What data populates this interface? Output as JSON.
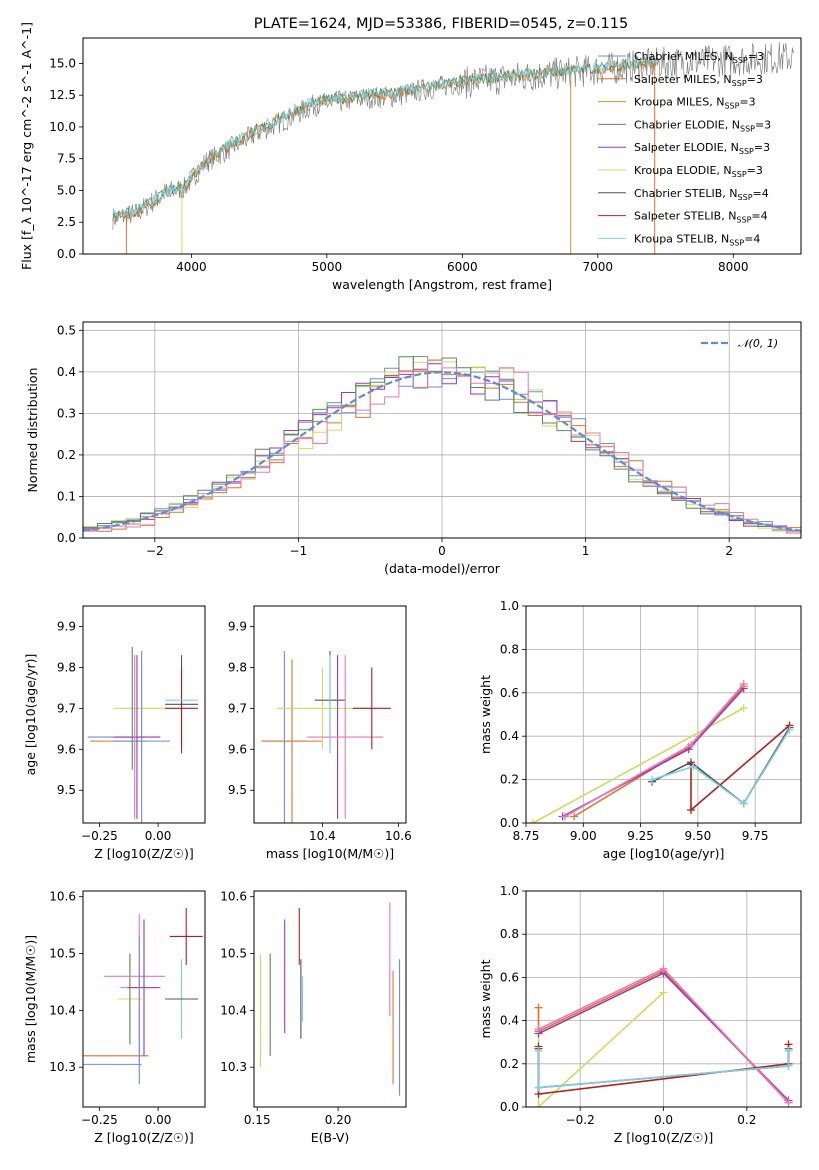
{
  "figure_title": "PLATE=1624, MJD=53386, FIBERID=0545, z=0.115",
  "colors": {
    "chabrier_miles": "#6d8fd8",
    "salpeter_miles": "#e0742a",
    "kroupa_miles": "#c49a2c",
    "chabrier_elodie": "#5a8a5a",
    "salpeter_elodie": "#9a3ab4",
    "kroupa_elodie": "#c8e060",
    "chabrier_stelib": "#555555",
    "salpeter_stelib": "#b02020",
    "kroupa_stelib": "#7ecfe0",
    "pink": "#e878b8",
    "normal_curve": "#5a8fd0"
  },
  "chart_data": [
    {
      "id": "spectrum",
      "type": "line",
      "title": "PLATE=1624, MJD=53386, FIBERID=0545, z=0.115",
      "xlabel": "wavelength [Angstrom, rest frame]",
      "ylabel": "Flux [f_λ 10^-17 erg cm^-2 s^-1 A^-1]",
      "xlim": [
        3200,
        8500
      ],
      "ylim": [
        0,
        17
      ],
      "xticks": [
        4000,
        5000,
        6000,
        7000,
        8000
      ],
      "yticks": [
        0.0,
        2.5,
        5.0,
        7.5,
        10.0,
        12.5,
        15.0
      ],
      "ytick_labels": [
        "0.0",
        "2.5",
        "5.0",
        "7.5",
        "10.0",
        "12.5",
        "15.0"
      ],
      "legend_position": "top-right",
      "legend": [
        "Chabrier MILES, N_SSP=3",
        "Salpeter MILES, N_SSP=3",
        "Kroupa MILES, N_SSP=3",
        "Chabrier ELODIE, N_SSP=3",
        "Salpeter ELODIE, N_SSP=3",
        "Kroupa ELODIE, N_SSP=3",
        "Chabrier STELIB, N_SSP=4",
        "Salpeter STELIB, N_SSP=4",
        "Kroupa STELIB, N_SSP=4"
      ],
      "data_trend": {
        "x": [
          3420,
          3600,
          3800,
          3950,
          4100,
          4300,
          4500,
          4700,
          4900,
          5100,
          5300,
          5500,
          5700,
          5900,
          6100,
          6300,
          6500,
          6700,
          6900,
          7100,
          7300,
          7450
        ],
        "y": [
          2.8,
          3.2,
          4.8,
          5.2,
          7.2,
          8.4,
          9.6,
          10.6,
          11.7,
          12.0,
          12.3,
          12.4,
          12.9,
          13.3,
          13.6,
          13.8,
          14.0,
          14.2,
          14.4,
          14.6,
          14.8,
          15.0
        ]
      },
      "model_trend": {
        "x": [
          3420,
          3600,
          3800,
          3950,
          4100,
          4300,
          4500,
          4700,
          4900,
          5100,
          5300,
          5500,
          5700,
          5900,
          6100,
          6300,
          6500,
          6700,
          6900,
          7100,
          7300,
          7450
        ],
        "y": [
          2.9,
          3.3,
          4.7,
          5.3,
          7.3,
          8.6,
          9.8,
          10.8,
          11.9,
          12.2,
          12.5,
          12.6,
          13.0,
          13.4,
          13.7,
          13.9,
          14.1,
          14.3,
          14.5,
          14.7,
          14.9,
          15.1
        ]
      }
    },
    {
      "id": "residuals",
      "type": "histogram",
      "xlabel": "(data-model)/error",
      "ylabel": "Normed distribution",
      "xlim": [
        -2.5,
        2.5
      ],
      "ylim": [
        0,
        0.52
      ],
      "xticks": [
        -2,
        -1,
        0,
        1,
        2
      ],
      "xtick_labels": [
        "−2",
        "−1",
        "0",
        "1",
        "2"
      ],
      "yticks": [
        0.0,
        0.1,
        0.2,
        0.3,
        0.4,
        0.5
      ],
      "ytick_labels": [
        "0.0",
        "0.1",
        "0.2",
        "0.3",
        "0.4",
        "0.5"
      ],
      "grid": true,
      "legend_position": "top-right",
      "legend": [
        "𝒩(0, 1)"
      ],
      "bins": {
        "start": -2.5,
        "width": 0.1,
        "count": 50
      },
      "series": [
        {
          "color_key": "chabrier_miles",
          "shift": 0.0
        },
        {
          "color_key": "salpeter_miles",
          "shift": 0.04
        },
        {
          "color_key": "salpeter_elodie",
          "shift": -0.03
        },
        {
          "color_key": "kroupa_elodie",
          "shift": 0.02
        },
        {
          "color_key": "chabrier_elodie",
          "shift": -0.05
        },
        {
          "color_key": "pink",
          "shift": 0.06
        }
      ]
    },
    {
      "id": "age-vs-Z",
      "type": "errorbar",
      "xlabel": "Z [log10(Z/Z☉)]",
      "ylabel": "age [log10(age/yr)]",
      "xlim": [
        -0.32,
        0.2
      ],
      "ylim": [
        9.42,
        9.95
      ],
      "xticks": [
        -0.25,
        0.0
      ],
      "xtick_labels": [
        "−0.25",
        "0.00"
      ],
      "yticks": [
        9.5,
        9.6,
        9.7,
        9.8,
        9.9
      ],
      "points": [
        {
          "x": -0.18,
          "y": 9.63,
          "xerr": 0.12,
          "yerr": 0.0,
          "color_key": "chabrier_miles"
        },
        {
          "x": -0.17,
          "y": 9.62,
          "xerr": 0.12,
          "yerr": 0.0,
          "color_key": "salpeter_miles"
        },
        {
          "x": -0.07,
          "y": 9.7,
          "xerr": 0.12,
          "yerr": 0.1,
          "color_key": "kroupa_elodie"
        },
        {
          "x": -0.07,
          "y": 9.62,
          "xerr": 0.12,
          "yerr": 0.22,
          "color_key": "chabrier_miles"
        },
        {
          "x": -0.09,
          "y": 9.63,
          "xerr": 0.1,
          "yerr": 0.2,
          "color_key": "salpeter_elodie"
        },
        {
          "x": -0.11,
          "y": 9.7,
          "xerr": 0.0,
          "yerr": 0.15,
          "color_key": "chabrier_elodie"
        },
        {
          "x": -0.1,
          "y": 9.63,
          "xerr": 0.0,
          "yerr": 0.2,
          "color_key": "pink"
        },
        {
          "x": 0.1,
          "y": 9.71,
          "xerr": 0.07,
          "yerr": 0.12,
          "color_key": "chabrier_stelib"
        },
        {
          "x": 0.1,
          "y": 9.7,
          "xerr": 0.07,
          "yerr": 0.1,
          "color_key": "salpeter_stelib"
        },
        {
          "x": 0.1,
          "y": 9.72,
          "xerr": 0.07,
          "yerr": 0.0,
          "color_key": "kroupa_stelib"
        }
      ]
    },
    {
      "id": "age-vs-mass",
      "type": "errorbar",
      "xlabel": "mass [log10(M/M☉)]",
      "ylabel": "",
      "xlim": [
        10.22,
        10.62
      ],
      "ylim": [
        9.42,
        9.95
      ],
      "xticks": [
        10.4,
        10.6
      ],
      "xtick_labels": [
        "10.4",
        "10.6"
      ],
      "yticks": [
        9.5,
        9.6,
        9.7,
        9.8,
        9.9
      ],
      "points": [
        {
          "x": 10.3,
          "y": 9.62,
          "xerr": 0.06,
          "yerr": 0.22,
          "color_key": "chabrier_miles"
        },
        {
          "x": 10.32,
          "y": 9.62,
          "xerr": 0.08,
          "yerr": 0.2,
          "color_key": "salpeter_miles"
        },
        {
          "x": 10.4,
          "y": 9.7,
          "xerr": 0.12,
          "yerr": 0.1,
          "color_key": "kroupa_elodie"
        },
        {
          "x": 10.42,
          "y": 9.72,
          "xerr": 0.04,
          "yerr": 0.12,
          "color_key": "chabrier_stelib"
        },
        {
          "x": 10.44,
          "y": 9.63,
          "xerr": 0.0,
          "yerr": 0.2,
          "color_key": "salpeter_elodie"
        },
        {
          "x": 10.46,
          "y": 9.63,
          "xerr": 0.1,
          "yerr": 0.2,
          "color_key": "pink"
        },
        {
          "x": 10.42,
          "y": 9.71,
          "xerr": 0.0,
          "yerr": 0.12,
          "color_key": "kroupa_stelib"
        },
        {
          "x": 10.53,
          "y": 9.7,
          "xerr": 0.05,
          "yerr": 0.1,
          "color_key": "salpeter_stelib"
        }
      ]
    },
    {
      "id": "weight-vs-age",
      "type": "line",
      "xlabel": "age [log10(age/yr)]",
      "ylabel": "mass weight",
      "xlim": [
        8.75,
        9.95
      ],
      "ylim": [
        0,
        1.0
      ],
      "xticks": [
        8.75,
        9.0,
        9.25,
        9.5,
        9.75
      ],
      "xtick_labels": [
        "8.75",
        "9.00",
        "9.25",
        "9.50",
        "9.75"
      ],
      "yticks": [
        0.0,
        0.2,
        0.4,
        0.6,
        0.8,
        1.0
      ],
      "grid": true,
      "series": [
        {
          "color_key": "kroupa_elodie",
          "x": [
            8.78,
            9.7
          ],
          "y": [
            0.0,
            0.53
          ]
        },
        {
          "color_key": "salpeter_miles",
          "x": [
            8.96,
            9.46,
            9.7
          ],
          "y": [
            0.03,
            0.35,
            0.63
          ]
        },
        {
          "color_key": "salpeter_elodie",
          "x": [
            8.91,
            9.46,
            9.7
          ],
          "y": [
            0.03,
            0.34,
            0.62
          ]
        },
        {
          "color_key": "pink",
          "x": [
            8.92,
            9.47,
            9.7
          ],
          "y": [
            0.03,
            0.36,
            0.64
          ]
        },
        {
          "color_key": "chabrier_stelib",
          "x": [
            9.3,
            9.47,
            9.7,
            9.9
          ],
          "y": [
            0.19,
            0.28,
            0.09,
            0.44
          ]
        },
        {
          "color_key": "salpeter_stelib",
          "x": [
            9.47,
            9.47,
            9.9
          ],
          "y": [
            0.27,
            0.06,
            0.45
          ]
        },
        {
          "color_key": "kroupa_stelib",
          "x": [
            9.3,
            9.48,
            9.7,
            9.9
          ],
          "y": [
            0.2,
            0.26,
            0.09,
            0.43
          ]
        }
      ]
    },
    {
      "id": "mass-vs-Z",
      "type": "errorbar",
      "xlabel": "Z [log10(Z/Z☉)]",
      "ylabel": "mass [log10(M/M☉)]",
      "xlim": [
        -0.32,
        0.2
      ],
      "ylim": [
        10.23,
        10.61
      ],
      "xticks": [
        -0.25,
        0.0
      ],
      "xtick_labels": [
        "−0.25",
        "0.00"
      ],
      "yticks": [
        10.3,
        10.4,
        10.5,
        10.6
      ],
      "points": [
        {
          "x": -0.2,
          "y": 10.305,
          "xerr": 0.13,
          "yerr": 0.0,
          "color_key": "chabrier_miles"
        },
        {
          "x": -0.18,
          "y": 10.32,
          "xerr": 0.14,
          "yerr": 0.0,
          "color_key": "salpeter_miles"
        },
        {
          "x": -0.12,
          "y": 10.42,
          "xerr": 0.05,
          "yerr": 0.08,
          "color_key": "kroupa_elodie"
        },
        {
          "x": -0.12,
          "y": 10.42,
          "xerr": 0.0,
          "yerr": 0.08,
          "color_key": "chabrier_elodie"
        },
        {
          "x": -0.1,
          "y": 10.46,
          "xerr": 0.13,
          "yerr": 0.0,
          "color_key": "pink"
        },
        {
          "x": -0.08,
          "y": 10.44,
          "xerr": 0.08,
          "yerr": 0.13,
          "color_key": "pink"
        },
        {
          "x": -0.06,
          "y": 10.44,
          "xerr": 0.07,
          "yerr": 0.12,
          "color_key": "salpeter_elodie"
        },
        {
          "x": -0.08,
          "y": 10.4,
          "xerr": 0.0,
          "yerr": 0.13,
          "color_key": "chabrier_miles"
        },
        {
          "x": 0.1,
          "y": 10.42,
          "xerr": 0.07,
          "yerr": 0.07,
          "color_key": "kroupa_stelib"
        },
        {
          "x": 0.1,
          "y": 10.42,
          "xerr": 0.07,
          "yerr": 0.0,
          "color_key": "chabrier_stelib"
        },
        {
          "x": 0.12,
          "y": 10.53,
          "xerr": 0.07,
          "yerr": 0.05,
          "color_key": "salpeter_stelib"
        }
      ]
    },
    {
      "id": "mass-vs-ebv",
      "type": "errorbar",
      "xlabel": "E(B-V)",
      "ylabel": "",
      "xlim": [
        0.148,
        0.242
      ],
      "ylim": [
        10.23,
        10.61
      ],
      "xticks": [
        0.15,
        0.2
      ],
      "xtick_labels": [
        "0.15",
        "0.20"
      ],
      "yticks": [
        10.3,
        10.4,
        10.5,
        10.6
      ],
      "points": [
        {
          "x": 0.152,
          "y": 10.4,
          "xerr": 0.0,
          "yerr": 0.1,
          "color_key": "kroupa_elodie"
        },
        {
          "x": 0.158,
          "y": 10.41,
          "xerr": 0.0,
          "yerr": 0.09,
          "color_key": "chabrier_elodie"
        },
        {
          "x": 0.167,
          "y": 10.46,
          "xerr": 0.0,
          "yerr": 0.1,
          "color_key": "salpeter_elodie"
        },
        {
          "x": 0.176,
          "y": 10.53,
          "xerr": 0.0,
          "yerr": 0.05,
          "color_key": "salpeter_stelib"
        },
        {
          "x": 0.177,
          "y": 10.42,
          "xerr": 0.0,
          "yerr": 0.07,
          "color_key": "chabrier_stelib"
        },
        {
          "x": 0.178,
          "y": 10.42,
          "xerr": 0.0,
          "yerr": 0.04,
          "color_key": "kroupa_stelib"
        },
        {
          "x": 0.232,
          "y": 10.49,
          "xerr": 0.0,
          "yerr": 0.1,
          "color_key": "pink"
        },
        {
          "x": 0.234,
          "y": 10.37,
          "xerr": 0.0,
          "yerr": 0.1,
          "color_key": "salpeter_miles"
        },
        {
          "x": 0.238,
          "y": 10.37,
          "xerr": 0.0,
          "yerr": 0.12,
          "color_key": "chabrier_miles"
        }
      ]
    },
    {
      "id": "weight-vs-Z",
      "type": "line",
      "xlabel": "Z [log10(Z/Z☉)]",
      "ylabel": "mass weight",
      "xlim": [
        -0.33,
        0.33
      ],
      "ylim": [
        0,
        1.0
      ],
      "xticks": [
        -0.2,
        0.0,
        0.2
      ],
      "xtick_labels": [
        "−0.2",
        "0.0",
        "0.2"
      ],
      "yticks": [
        0.0,
        0.2,
        0.4,
        0.6,
        0.8,
        1.0
      ],
      "grid": true,
      "series": [
        {
          "color_key": "kroupa_elodie",
          "x": [
            -0.3,
            -0.3,
            0.0
          ],
          "y": [
            0.46,
            0.0,
            0.53
          ]
        },
        {
          "color_key": "salpeter_miles",
          "x": [
            -0.3,
            -0.3,
            0.0,
            0.3
          ],
          "y": [
            0.46,
            0.35,
            0.63,
            0.02
          ]
        },
        {
          "color_key": "salpeter_elodie",
          "x": [
            -0.3,
            0.0,
            0.3
          ],
          "y": [
            0.34,
            0.62,
            0.03
          ]
        },
        {
          "color_key": "pink",
          "x": [
            -0.3,
            0.0,
            0.3
          ],
          "y": [
            0.36,
            0.64,
            0.02
          ]
        },
        {
          "color_key": "chabrier_stelib",
          "x": [
            -0.3,
            -0.3,
            0.3,
            0.3
          ],
          "y": [
            0.28,
            0.09,
            0.19,
            0.27
          ]
        },
        {
          "color_key": "salpeter_stelib",
          "x": [
            -0.3,
            -0.3,
            0.3,
            0.3
          ],
          "y": [
            0.27,
            0.06,
            0.2,
            0.29
          ]
        },
        {
          "color_key": "kroupa_stelib",
          "x": [
            -0.3,
            -0.3,
            0.3,
            0.3
          ],
          "y": [
            0.26,
            0.09,
            0.19,
            0.26
          ]
        }
      ]
    }
  ]
}
